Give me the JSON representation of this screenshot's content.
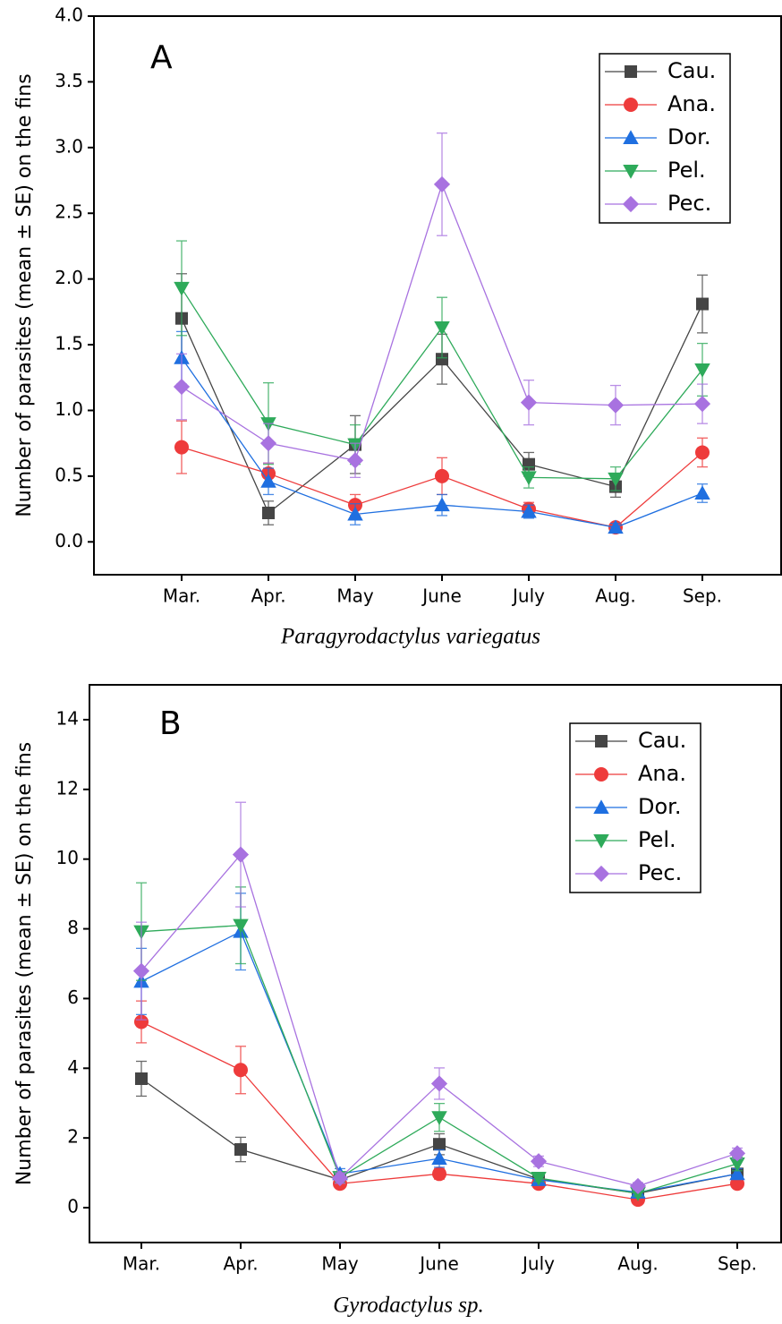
{
  "chart_data": [
    {
      "type": "line",
      "annotation": "A",
      "ylabel": "Number of parasites (mean ± SE) on the fins",
      "xlabel": "Paragyrodactylus variegatus",
      "categories": [
        "Mar.",
        "Apr.",
        "May",
        "June",
        "July",
        "Aug.",
        "Sep."
      ],
      "ylim": [
        -0.25,
        4.0
      ],
      "yticks": [
        {
          "value": 0,
          "label": "0.0"
        },
        0.5,
        {
          "value": 1,
          "label": "1.0"
        },
        1.5,
        {
          "value": 2,
          "label": "2.0"
        },
        2.5,
        {
          "value": 3,
          "label": "3.0"
        },
        3.5,
        {
          "value": 4,
          "label": "4.0"
        }
      ],
      "legend": "upper right",
      "series": [
        {
          "name": "Cau.",
          "color": "#454545",
          "marker": "square",
          "values": [
            1.7,
            0.22,
            0.74,
            1.39,
            0.59,
            0.42,
            1.81
          ],
          "errors": [
            0.34,
            0.09,
            0.22,
            0.19,
            0.09,
            0.08,
            0.22
          ]
        },
        {
          "name": "Ana.",
          "color": "#ee3b3b",
          "marker": "circle",
          "values": [
            0.72,
            0.52,
            0.28,
            0.5,
            0.25,
            0.11,
            0.68
          ],
          "errors": [
            0.2,
            0.08,
            0.08,
            0.14,
            0.05,
            0.03,
            0.11
          ]
        },
        {
          "name": "Dor.",
          "color": "#1f6fe0",
          "marker": "triangle-up",
          "values": [
            1.4,
            0.46,
            0.21,
            0.28,
            0.23,
            0.11,
            0.37
          ],
          "errors": [
            0.2,
            0.1,
            0.08,
            0.08,
            0.05,
            0.03,
            0.07
          ]
        },
        {
          "name": "Pel.",
          "color": "#2eaa5a",
          "marker": "triangle-down",
          "values": [
            1.93,
            0.9,
            0.74,
            1.63,
            0.49,
            0.48,
            1.31
          ],
          "errors": [
            0.36,
            0.31,
            0.15,
            0.23,
            0.08,
            0.09,
            0.2
          ]
        },
        {
          "name": "Pec.",
          "color": "#a872e0",
          "marker": "diamond",
          "values": [
            1.18,
            0.75,
            0.62,
            2.72,
            1.06,
            1.04,
            1.05
          ],
          "errors": [
            0.25,
            0.15,
            0.13,
            0.39,
            0.17,
            0.15,
            0.15
          ]
        }
      ]
    },
    {
      "type": "line",
      "annotation": "B",
      "ylabel": "Number of parasites (mean ± SE) on the fins",
      "xlabel": "Gyrodactylus sp.",
      "categories": [
        "Mar.",
        "Apr.",
        "May",
        "June",
        "July",
        "Aug.",
        "Sep."
      ],
      "ylim": [
        -1,
        15
      ],
      "yticks": [
        0,
        2,
        4,
        6,
        8,
        10,
        12,
        14
      ],
      "legend": "upper right",
      "series": [
        {
          "name": "Cau.",
          "color": "#454545",
          "marker": "square",
          "values": [
            3.7,
            1.67,
            0.8,
            1.82,
            0.82,
            0.41,
            0.97
          ],
          "errors": [
            0.5,
            0.35,
            0.15,
            0.3,
            0.1,
            0.08,
            0.15
          ]
        },
        {
          "name": "Ana.",
          "color": "#ee3b3b",
          "marker": "circle",
          "values": [
            5.33,
            3.95,
            0.69,
            0.97,
            0.69,
            0.23,
            0.69
          ],
          "errors": [
            0.6,
            0.68,
            0.12,
            0.15,
            0.1,
            0.05,
            0.1
          ]
        },
        {
          "name": "Dor.",
          "color": "#1f6fe0",
          "marker": "triangle-up",
          "values": [
            6.49,
            7.92,
            0.97,
            1.41,
            0.8,
            0.44,
            0.97
          ],
          "errors": [
            0.95,
            1.1,
            0.15,
            0.25,
            0.1,
            0.08,
            0.15
          ]
        },
        {
          "name": "Pel.",
          "color": "#2eaa5a",
          "marker": "triangle-down",
          "values": [
            7.92,
            8.1,
            0.87,
            2.59,
            0.85,
            0.41,
            1.26
          ],
          "errors": [
            1.4,
            1.1,
            0.15,
            0.4,
            0.1,
            0.08,
            0.2
          ]
        },
        {
          "name": "Pec.",
          "color": "#a872e0",
          "marker": "diamond",
          "values": [
            6.79,
            10.13,
            0.85,
            3.56,
            1.33,
            0.62,
            1.56
          ],
          "errors": [
            1.4,
            1.5,
            0.15,
            0.45,
            0.15,
            0.1,
            0.15
          ]
        }
      ]
    }
  ]
}
